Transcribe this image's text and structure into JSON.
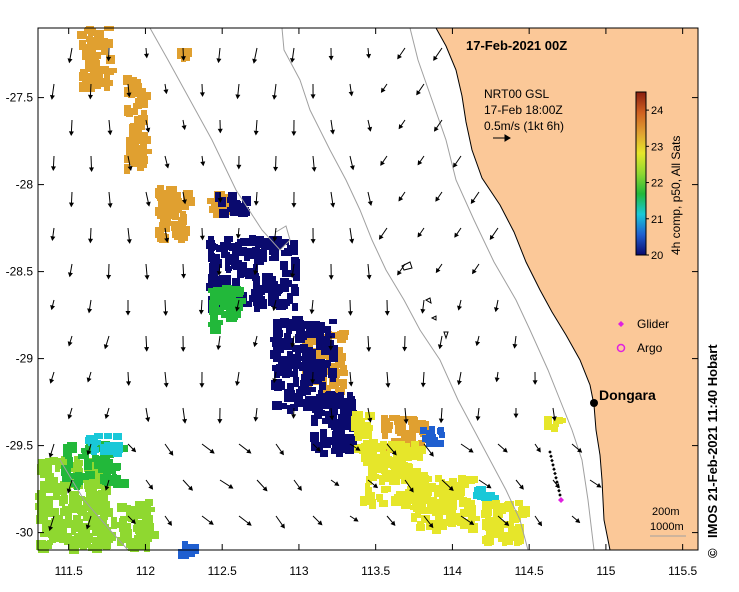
{
  "title": "17-Feb-2021 00Z",
  "vector_info": {
    "line1": "NRT00 GSL",
    "line2": "17-Feb 18:00Z",
    "line3": "0.5m/s (1kt 6h)"
  },
  "colorbar": {
    "label": "4h comp, p50, All Sats",
    "ticks": [
      "20",
      "21",
      "22",
      "23",
      "24"
    ],
    "min": 20,
    "max": 24.5,
    "colors": [
      "#0a0a6e",
      "#1f5fd0",
      "#19c8d8",
      "#22b83a",
      "#8fd830",
      "#e6e62a",
      "#e0a030",
      "#d06020",
      "#8a1e10"
    ]
  },
  "axes": {
    "x_ticks": [
      "111.5",
      "112",
      "112.5",
      "113",
      "113.5",
      "114",
      "114.5",
      "115",
      "115.5"
    ],
    "y_ticks": [
      "-27.5",
      "-28",
      "-28.5",
      "-29",
      "-29.5",
      "-30"
    ],
    "x_range": [
      111.3,
      115.6
    ],
    "y_range": [
      -30.1,
      -27.1
    ]
  },
  "legend": {
    "glider": "Glider",
    "argo": "Argo",
    "glider_color": "#e020e0",
    "argo_color": "#e020e0"
  },
  "place": {
    "name": "Dongara",
    "lon": 114.93,
    "lat": -29.26
  },
  "isobaths": {
    "line1": "200m",
    "line2": "1000m"
  },
  "credit": "IMOS 21-Feb-2021 11:40 Hobart",
  "copyright": "©",
  "land_color": "#fbc898"
}
